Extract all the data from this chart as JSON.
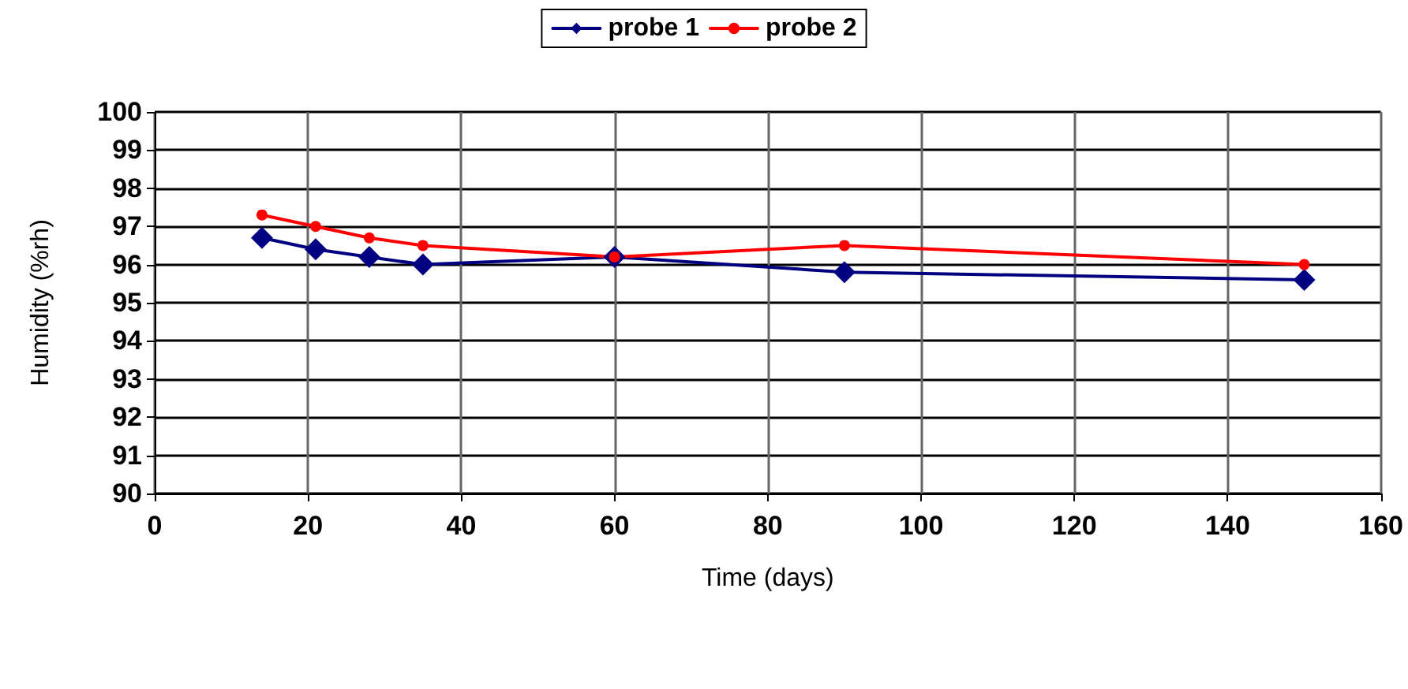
{
  "chart_data": {
    "type": "line",
    "xlabel": "Time (days)",
    "ylabel": "Humidity (%rh)",
    "x": [
      14,
      21,
      28,
      35,
      60,
      90,
      150
    ],
    "series": [
      {
        "name": "probe 1",
        "color": "#000080",
        "marker": "diamond",
        "values": [
          96.7,
          96.4,
          96.2,
          96.0,
          96.2,
          95.8,
          95.6
        ]
      },
      {
        "name": "probe 2",
        "color": "#ff0000",
        "marker": "circle",
        "values": [
          97.3,
          97.0,
          96.7,
          96.5,
          96.2,
          96.5,
          96.0
        ]
      }
    ],
    "xlim": [
      0,
      160
    ],
    "xticks": [
      0,
      20,
      40,
      60,
      80,
      100,
      120,
      140,
      160
    ],
    "ylim": [
      90,
      100
    ],
    "yticks": [
      90,
      91,
      92,
      93,
      94,
      95,
      96,
      97,
      98,
      99,
      100
    ],
    "grid": true,
    "legend": "top"
  }
}
